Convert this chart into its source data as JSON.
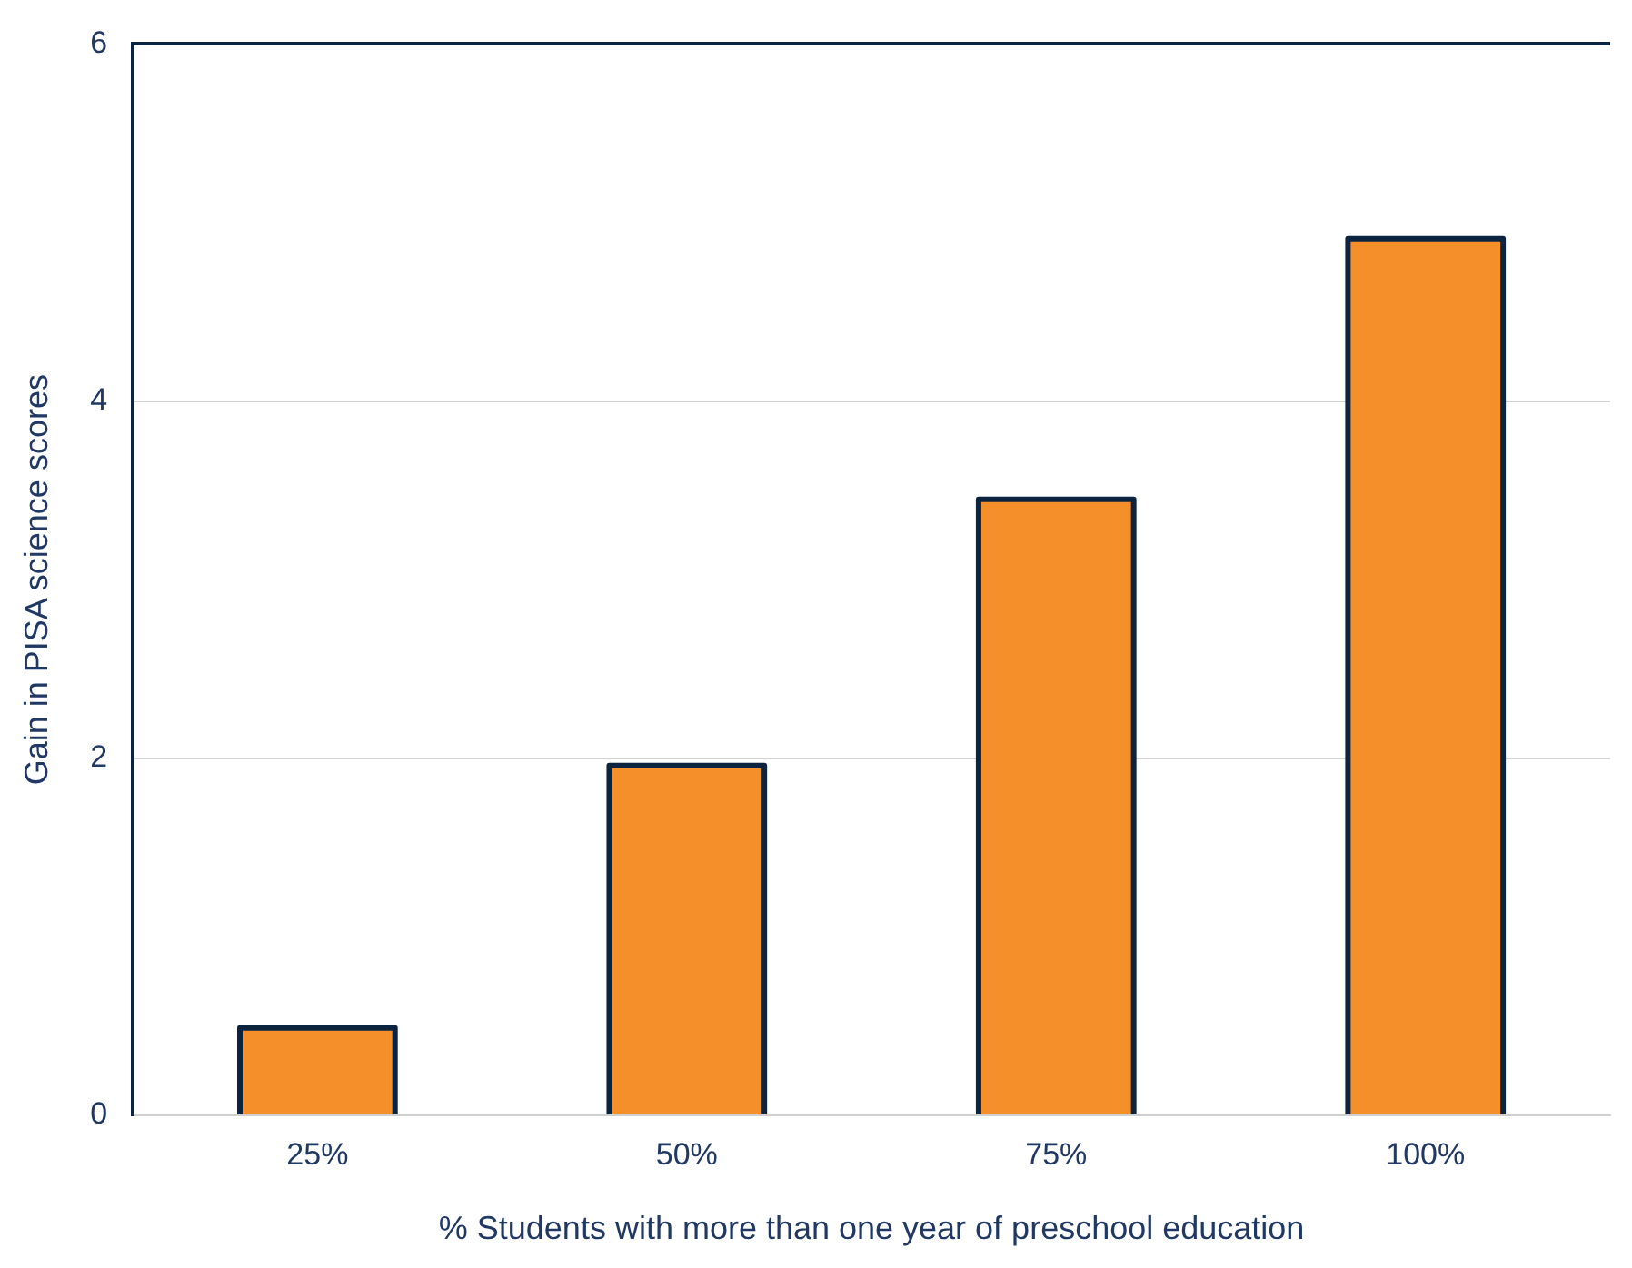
{
  "chart_data": {
    "type": "bar",
    "xlabel": "% Students with more than one year of preschool education",
    "ylabel": "Gain in PISA science scores",
    "categories": [
      "25%",
      "50%",
      "75%",
      "100%"
    ],
    "values": [
      0.49,
      1.96,
      3.45,
      4.91
    ],
    "color": "#f58f2a",
    "ylim": [
      0,
      6
    ],
    "yticks": [
      0,
      2,
      4,
      6
    ],
    "grid": "y"
  }
}
